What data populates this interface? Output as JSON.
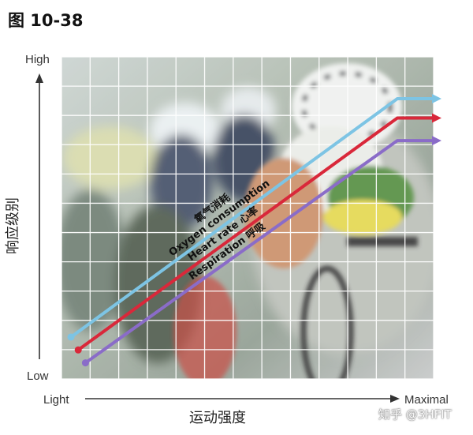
{
  "figure_title": "图 10-38",
  "watermark": "知乎 @3HFIT",
  "chart_data": {
    "type": "line",
    "title": "",
    "xlabel": "运动强度",
    "ylabel": "响应级别",
    "x_axis": {
      "low_label": "Light",
      "high_label": "Maximal"
    },
    "y_axis": {
      "low_label": "Low",
      "high_label": "High"
    },
    "xlim": [
      0,
      1
    ],
    "ylim": [
      0,
      1
    ],
    "grid": true,
    "legend": "none",
    "series": [
      {
        "name": "氧气消耗 Oxygen consumption",
        "label_line1": "氧气消耗",
        "label_line2": "Oxygen consumption",
        "color": "#7dc4e4",
        "x": [
          0.0,
          0.9,
          1.0
        ],
        "y": [
          0.13,
          0.87,
          0.87
        ]
      },
      {
        "name": "Heart rate 心率",
        "label_line1": "Heart rate  心率",
        "label_line2": "",
        "color": "#d9283a",
        "x": [
          0.02,
          0.9,
          1.0
        ],
        "y": [
          0.09,
          0.81,
          0.81
        ]
      },
      {
        "name": "Respiration 呼吸",
        "label_line1": "Respiration  呼吸",
        "label_line2": "",
        "color": "#8a6cc8",
        "x": [
          0.04,
          0.9,
          1.0
        ],
        "y": [
          0.05,
          0.74,
          0.74
        ]
      }
    ]
  }
}
